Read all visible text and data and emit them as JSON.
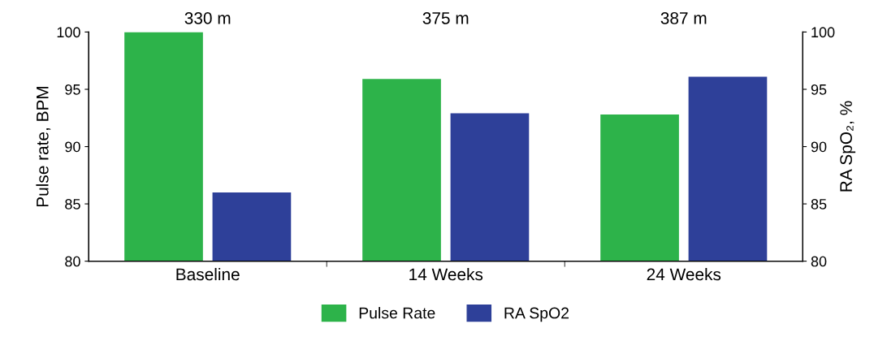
{
  "chart_data": {
    "type": "bar",
    "categories": [
      "Baseline",
      "14 Weeks",
      "24 Weeks"
    ],
    "ylabel": "Pulse rate, BPM",
    "y2label": "RA SpO₂, %",
    "series": [
      {
        "name": "Pulse Rate",
        "color": "#2db34a",
        "values": [
          100,
          95.9,
          92.8
        ]
      },
      {
        "name": "RA SpO2",
        "color": "#2e4099",
        "values": [
          86.0,
          92.9,
          96.1
        ],
        "axis": "y2"
      }
    ],
    "annotations": [
      "330 m",
      "375 m",
      "387 m"
    ],
    "ylim": [
      80,
      100
    ],
    "yticks": [
      80,
      85,
      90,
      95,
      100
    ],
    "y2lim": [
      80,
      100
    ],
    "y2ticks": [
      80,
      85,
      90,
      95,
      100
    ],
    "legend": "bottom",
    "grid": false
  }
}
